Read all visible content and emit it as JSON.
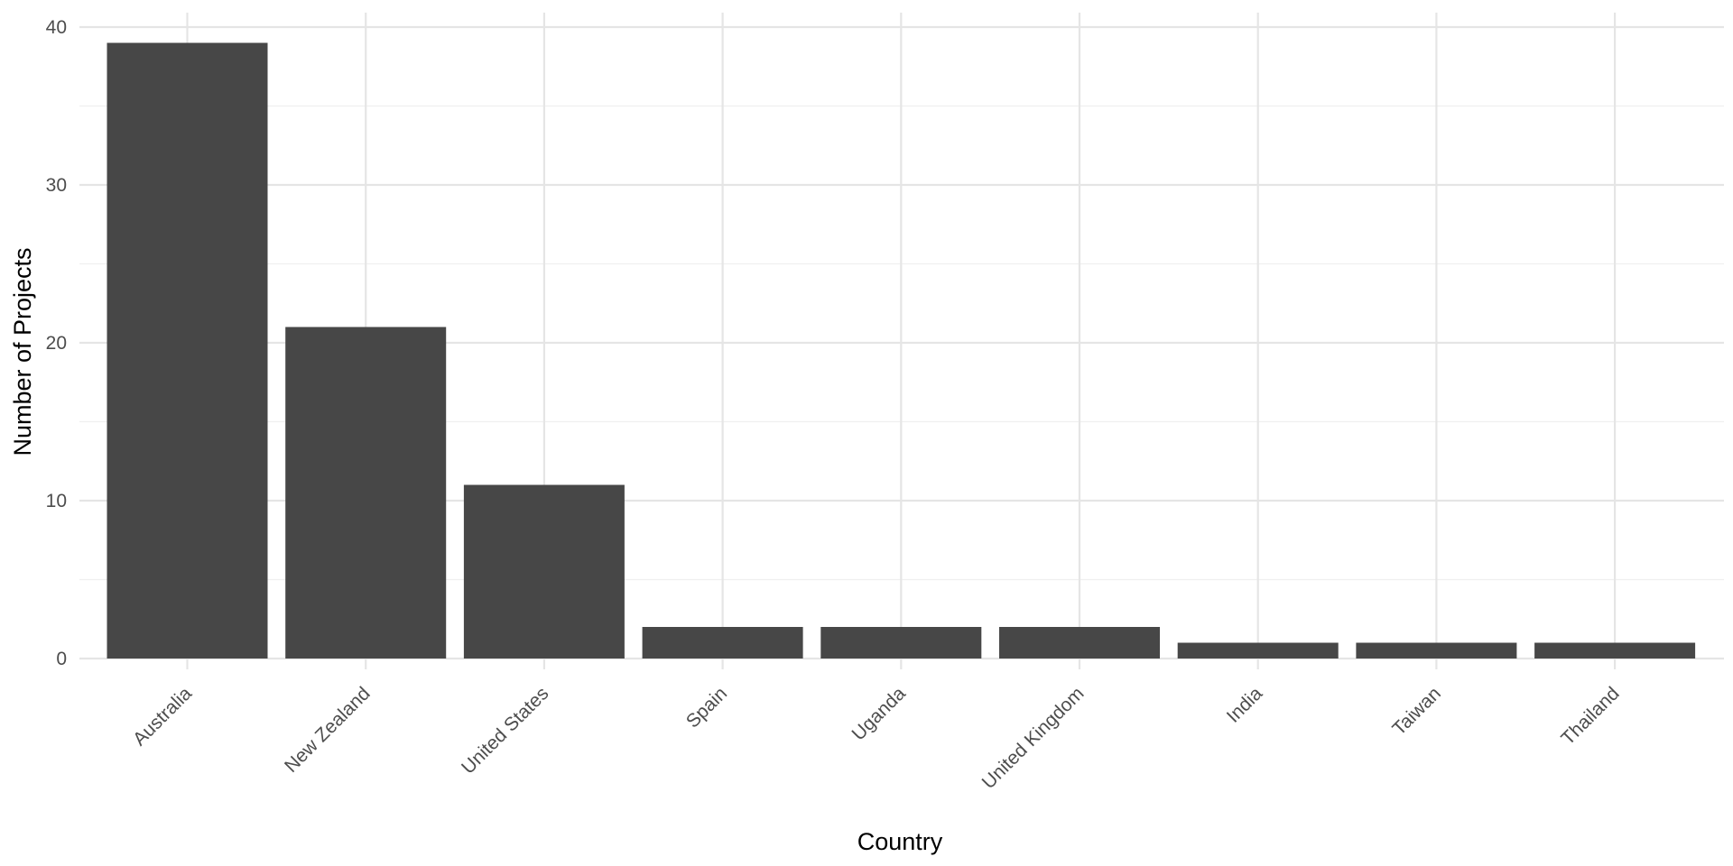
{
  "chart_data": {
    "type": "bar",
    "categories": [
      "Australia",
      "New Zealand",
      "United States",
      "Spain",
      "Uganda",
      "United Kingdom",
      "India",
      "Taiwan",
      "Thailand"
    ],
    "values": [
      39,
      21,
      11,
      2,
      2,
      2,
      1,
      1,
      1
    ],
    "xlabel": "Country",
    "ylabel": "Number of Projects",
    "ylim": [
      0,
      40
    ],
    "yticks": [
      0,
      10,
      20,
      30,
      40
    ],
    "grid": true,
    "legend": "none",
    "colors": {
      "bar": "#474747",
      "grid_major": "#e5e5e5",
      "grid_minor": "#f0f0f0",
      "tick_text": "#4d4d4d",
      "title_text": "#000000",
      "background": "#ffffff"
    }
  }
}
